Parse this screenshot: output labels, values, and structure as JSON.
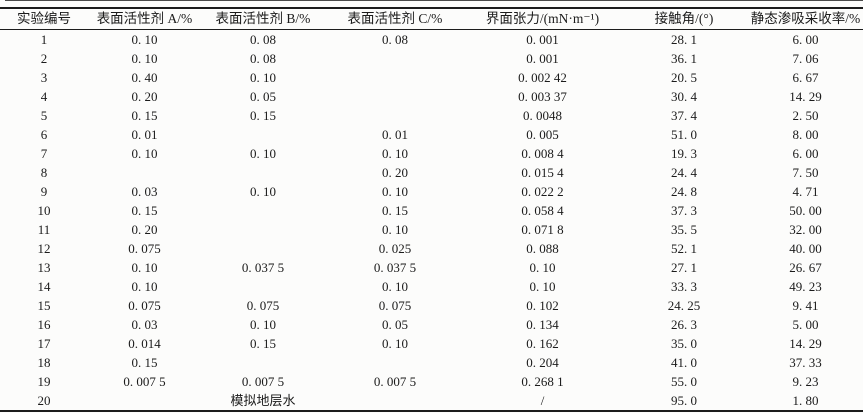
{
  "page": {
    "background": "#fcfcfb",
    "text_color": "#1b1b1b",
    "rule_color": "#1c1c1c"
  },
  "table": {
    "columns": [
      "实验编号",
      "表面活性剂 A/%",
      "表面活性剂 B/%",
      "表面活性剂 C/%",
      "界面张力/(mN·m⁻¹)",
      "接触角/(°)",
      "静态渗吸采收率/%"
    ],
    "rows": [
      [
        "1",
        "0. 10",
        "0. 08",
        "0. 08",
        "0. 001",
        "28. 1",
        "6. 00"
      ],
      [
        "2",
        "0. 10",
        "0. 08",
        "",
        "0. 001",
        "36. 1",
        "7. 06"
      ],
      [
        "3",
        "0. 40",
        "0. 10",
        "",
        "0. 002 42",
        "20. 5",
        "6. 67"
      ],
      [
        "4",
        "0. 20",
        "0. 05",
        "",
        "0. 003 37",
        "30. 4",
        "14. 29"
      ],
      [
        "5",
        "0. 15",
        "0. 15",
        "",
        "0. 0048",
        "37. 4",
        "2. 50"
      ],
      [
        "6",
        "0. 01",
        "",
        "0. 01",
        "0. 005",
        "51. 0",
        "8. 00"
      ],
      [
        "7",
        "0. 10",
        "0. 10",
        "0. 10",
        "0. 008 4",
        "19. 3",
        "6. 00"
      ],
      [
        "8",
        "",
        "",
        "0. 20",
        "0. 015 4",
        "24. 4",
        "7. 50"
      ],
      [
        "9",
        "0. 03",
        "0. 10",
        "0. 10",
        "0. 022 2",
        "24. 8",
        "4. 71"
      ],
      [
        "10",
        "0. 15",
        "",
        "0. 15",
        "0. 058 4",
        "37. 3",
        "50. 00"
      ],
      [
        "11",
        "0. 20",
        "",
        "0. 10",
        "0. 071 8",
        "35. 5",
        "32. 00"
      ],
      [
        "12",
        "0. 075",
        "",
        "0. 025",
        "0. 088",
        "52. 1",
        "40. 00"
      ],
      [
        "13",
        "0. 10",
        "0. 037 5",
        "0. 037 5",
        "0. 10",
        "27. 1",
        "26. 67"
      ],
      [
        "14",
        "0. 10",
        "",
        "0. 10",
        "0. 10",
        "33. 3",
        "49. 23"
      ],
      [
        "15",
        "0. 075",
        "0. 075",
        "0. 075",
        "0. 102",
        "24. 25",
        "9. 41"
      ],
      [
        "16",
        "0. 03",
        "0. 10",
        "0. 05",
        "0. 134",
        "26. 3",
        "5. 00"
      ],
      [
        "17",
        "0. 014",
        "0. 15",
        "0. 10",
        "0. 162",
        "35. 0",
        "14. 29"
      ],
      [
        "18",
        "0. 15",
        "",
        "",
        "0. 204",
        "41. 0",
        "37. 33"
      ],
      [
        "19",
        "0. 007 5",
        "0. 007 5",
        "0. 007 5",
        "0. 268 1",
        "55. 0",
        "9. 23"
      ],
      [
        "20",
        "",
        "模拟地层水",
        "",
        "/",
        "95. 0",
        "1. 80"
      ]
    ]
  }
}
